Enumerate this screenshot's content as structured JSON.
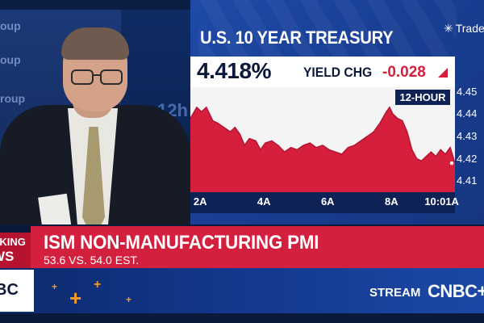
{
  "panel": {
    "title": "U.S. 10 YEAR TREASURY",
    "brand": "Trade",
    "brand_icon": "sparkle-icon",
    "yield_value": "4.418%",
    "yield_change_label": "YIELD CHG",
    "yield_change_value": "-0.028",
    "period_label": "12-HOUR"
  },
  "background_text": {
    "line1": "oup",
    "line2": "oup",
    "line3": "roup",
    "number": "12h"
  },
  "chart_data": {
    "type": "area",
    "title": "U.S. 10 YEAR TREASURY",
    "xlabel": "",
    "ylabel": "",
    "x_ticks": [
      "2A",
      "4A",
      "6A",
      "8A",
      "10:01A"
    ],
    "y_ticks": [
      "4.45",
      "4.44",
      "4.43",
      "4.42",
      "4.41"
    ],
    "ylim": [
      4.405,
      4.452
    ],
    "xlim": [
      1.75,
      10.05
    ],
    "series": [
      {
        "name": "",
        "color": "#d61f3c",
        "x": [
          1.75,
          1.95,
          2.1,
          2.25,
          2.45,
          2.6,
          2.8,
          3.0,
          3.15,
          3.3,
          3.45,
          3.6,
          3.8,
          3.95,
          4.1,
          4.3,
          4.5,
          4.7,
          4.9,
          5.1,
          5.3,
          5.5,
          5.7,
          5.9,
          6.1,
          6.3,
          6.5,
          6.7,
          6.9,
          7.1,
          7.3,
          7.5,
          7.7,
          7.9,
          8.0,
          8.1,
          8.25,
          8.4,
          8.55,
          8.7,
          8.85,
          9.0,
          9.15,
          9.3,
          9.45,
          9.6,
          9.75,
          9.9,
          10.05
        ],
        "values": [
          4.438,
          4.443,
          4.441,
          4.443,
          4.437,
          4.436,
          4.434,
          4.432,
          4.434,
          4.431,
          4.426,
          4.429,
          4.428,
          4.424,
          4.427,
          4.428,
          4.426,
          4.423,
          4.425,
          4.424,
          4.426,
          4.427,
          4.425,
          4.426,
          4.424,
          4.423,
          4.422,
          4.425,
          4.426,
          4.428,
          4.43,
          4.432,
          4.436,
          4.441,
          4.443,
          4.44,
          4.438,
          4.437,
          4.432,
          4.424,
          4.42,
          4.419,
          4.421,
          4.423,
          4.421,
          4.424,
          4.422,
          4.425,
          4.418
        ]
      }
    ]
  },
  "lower_third": {
    "breaking_line1": "AKING",
    "breaking_line2": "WS",
    "headline": "ISM NON-MANUFACTURING PMI",
    "subline": "53.6 VS. 54.0 EST.",
    "logo_text": "BC",
    "stream_label": "STREAM",
    "network": "CNBC+"
  }
}
